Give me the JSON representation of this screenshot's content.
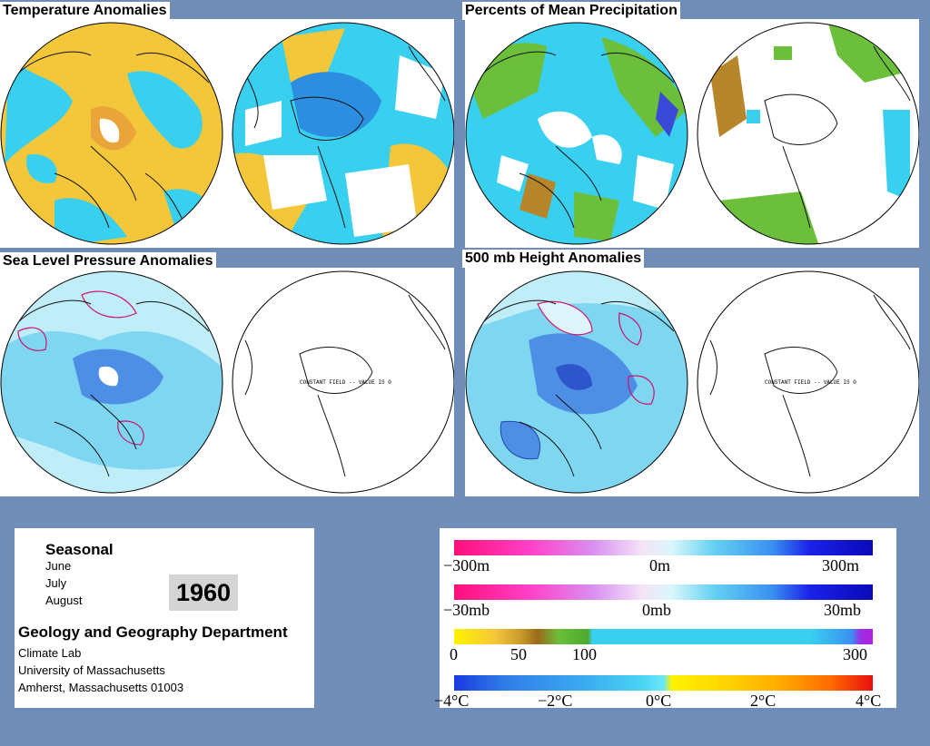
{
  "panels": {
    "temperature": {
      "title": "Temperature Anomalies"
    },
    "precipitation": {
      "title": "Percents of Mean Precipitation"
    },
    "slp": {
      "title": "Sea Level Pressure Anomalies",
      "constant_field_label": "CONSTANT FIELD -- VALUE IS 0"
    },
    "height500": {
      "title": "500 mb Height Anomalies",
      "constant_field_label": "CONSTANT FIELD -- VALUE IS 0"
    }
  },
  "info": {
    "period_heading": "Seasonal",
    "months": [
      "June",
      "July",
      "August"
    ],
    "year": "1960",
    "department": "Geology and Geography Department",
    "lab": "Climate Lab",
    "university": "University of Massachusetts",
    "address": "Amherst, Massachusetts 01003"
  },
  "legends": {
    "height": {
      "labels": [
        "−300m",
        "0m",
        "300m"
      ]
    },
    "pressure": {
      "labels": [
        "−30mb",
        "0mb",
        "30mb"
      ]
    },
    "precip": {
      "labels": [
        "0",
        "50",
        "100",
        "300"
      ]
    },
    "temp": {
      "labels": [
        "−4°C",
        "−2°C",
        "0°C",
        "2°C",
        "4°C"
      ]
    }
  },
  "colors": {
    "background": "#6f8db6",
    "anomaly_warm": "#f2c230",
    "anomaly_cool": "#33d4f0",
    "pressure_light": "#bfeef8",
    "pressure_mid": "#7fd6f0",
    "pressure_low": "#4e8fe6"
  }
}
